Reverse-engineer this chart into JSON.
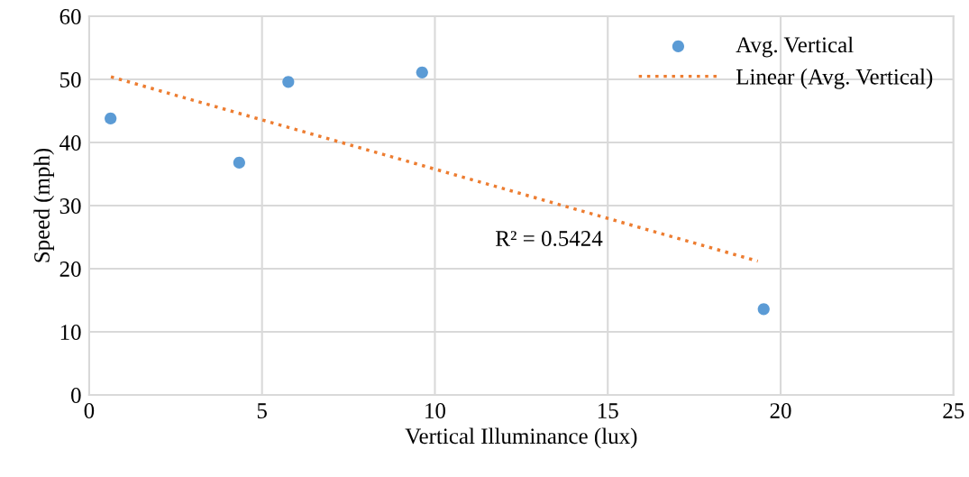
{
  "chart_data": {
    "type": "scatter",
    "xlabel": "Vertical Illuminance (lux)",
    "ylabel": "Speed (mph)",
    "xlim": [
      0,
      25
    ],
    "xticks": [
      0,
      5,
      10,
      15,
      20,
      25
    ],
    "ylim": [
      0,
      60
    ],
    "yticks": [
      0,
      10,
      20,
      30,
      40,
      50,
      60
    ],
    "grid": true,
    "legend": "top right",
    "marker": "circle",
    "series": [
      {
        "name": "Avg. Vertical",
        "color": "#5b9bd5",
        "x": [
          0.62,
          4.34,
          5.76,
          9.63,
          19.51
        ],
        "values": [
          43.8,
          36.8,
          49.6,
          51.1,
          13.6
        ]
      },
      {
        "name": "Linear (Avg. Vertical)",
        "type": "line",
        "color": "#ed7d31",
        "line_style": "dotted",
        "marker": "none",
        "x": [
          0.63,
          19.34
        ],
        "values": [
          50.4,
          21.2
        ]
      }
    ],
    "annotations": [
      "R² = 0.5424"
    ]
  }
}
